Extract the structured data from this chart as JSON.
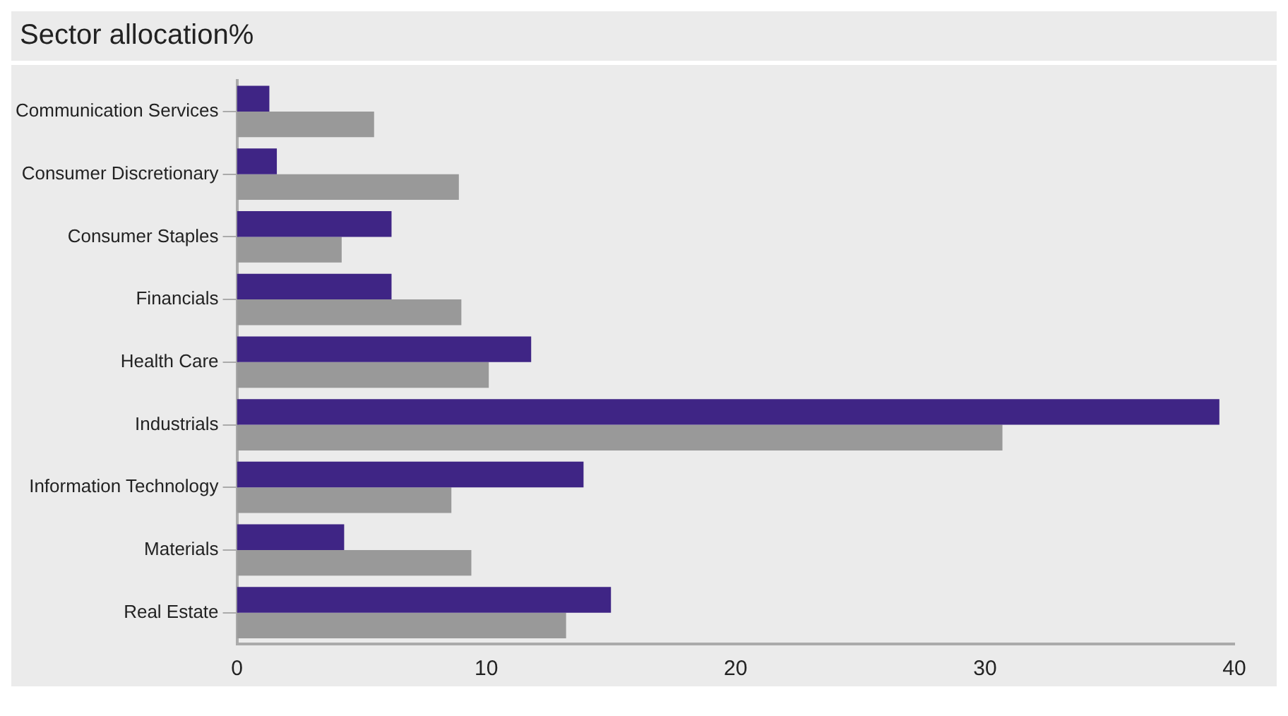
{
  "chart_data": {
    "type": "bar",
    "title": "Sector allocation%",
    "orientation": "horizontal",
    "categories": [
      "Communication Services",
      "Consumer Discretionary",
      "Consumer Staples",
      "Financials",
      "Health Care",
      "Industrials",
      "Information Technology",
      "Materials",
      "Real Estate"
    ],
    "series": [
      {
        "color": "#3f2585",
        "values": [
          1.3,
          1.6,
          6.2,
          6.2,
          11.8,
          39.4,
          13.9,
          4.3,
          15.0
        ]
      },
      {
        "color": "#999999",
        "values": [
          5.5,
          8.9,
          4.2,
          9.0,
          10.1,
          30.7,
          8.6,
          9.4,
          13.2
        ]
      }
    ],
    "xlim": [
      0,
      40
    ],
    "xticks": [
      0,
      10,
      20,
      30,
      40
    ],
    "grid": false,
    "legend": false
  }
}
